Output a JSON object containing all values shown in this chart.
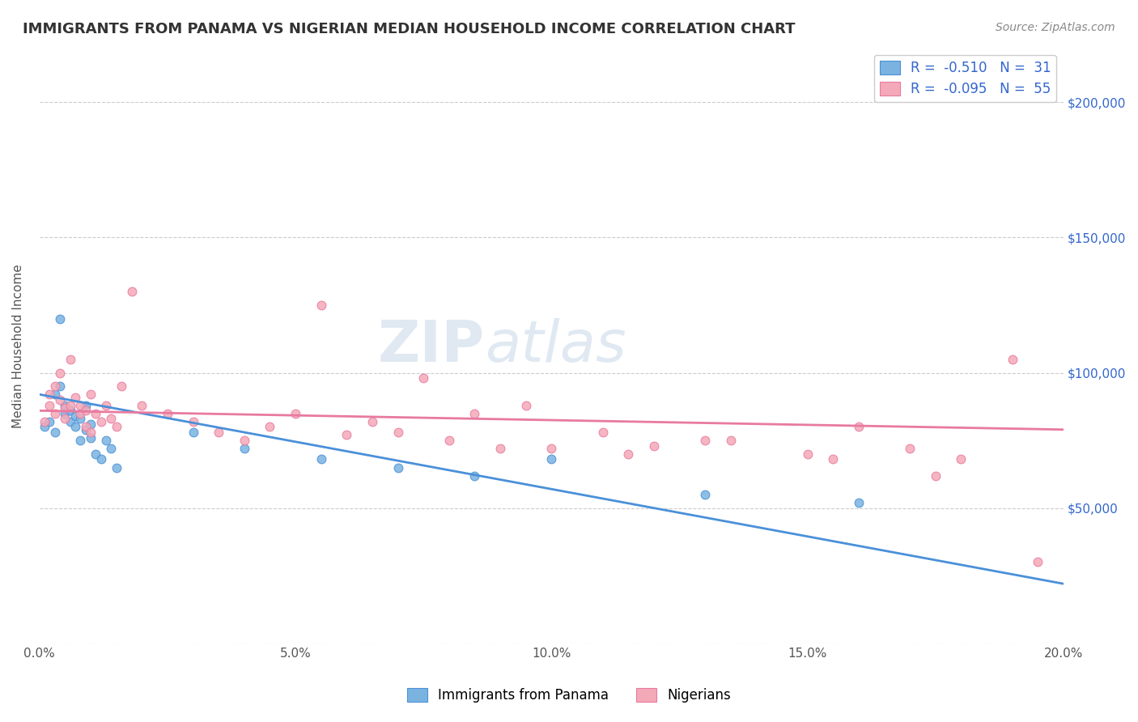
{
  "title": "IMMIGRANTS FROM PANAMA VS NIGERIAN MEDIAN HOUSEHOLD INCOME CORRELATION CHART",
  "source_text": "Source: ZipAtlas.com",
  "xlabel": "",
  "ylabel": "Median Household Income",
  "xlim": [
    0.0,
    0.2
  ],
  "ylim": [
    0,
    220000
  ],
  "xticks": [
    0.0,
    0.05,
    0.1,
    0.15,
    0.2
  ],
  "xticklabels": [
    "0.0%",
    "5.0%",
    "10.0%",
    "15.0%",
    "20.0%"
  ],
  "ytick_values": [
    0,
    50000,
    100000,
    150000,
    200000
  ],
  "right_ytick_labels": [
    "$200,000",
    "$150,000",
    "$100,000",
    "$50,000"
  ],
  "right_ytick_values": [
    200000,
    150000,
    100000,
    50000
  ],
  "blue_color": "#7ab3e0",
  "pink_color": "#f4a9b8",
  "blue_line_color": "#4a90d9",
  "pink_line_color": "#e87a9f",
  "legend_blue_label": "R =  -0.510   N =  31",
  "legend_pink_label": "R =  -0.095   N =  55",
  "series_blue_label": "Immigrants from Panama",
  "series_pink_label": "Nigerians",
  "background_color": "#ffffff",
  "grid_color": "#cccccc",
  "title_color": "#333333",
  "axis_label_color": "#555555",
  "legend_text_color": "#3366cc",
  "blue_scatter_x": [
    0.001,
    0.002,
    0.003,
    0.003,
    0.004,
    0.004,
    0.005,
    0.005,
    0.006,
    0.006,
    0.007,
    0.007,
    0.008,
    0.008,
    0.009,
    0.009,
    0.01,
    0.01,
    0.011,
    0.012,
    0.013,
    0.014,
    0.015,
    0.03,
    0.04,
    0.055,
    0.07,
    0.085,
    0.1,
    0.13,
    0.16
  ],
  "blue_scatter_y": [
    80000,
    82000,
    78000,
    92000,
    120000,
    95000,
    85000,
    88000,
    82000,
    86000,
    80000,
    84000,
    75000,
    83000,
    88000,
    79000,
    76000,
    81000,
    70000,
    68000,
    75000,
    72000,
    65000,
    78000,
    72000,
    68000,
    65000,
    62000,
    68000,
    55000,
    52000
  ],
  "pink_scatter_x": [
    0.001,
    0.002,
    0.002,
    0.003,
    0.003,
    0.004,
    0.004,
    0.005,
    0.005,
    0.006,
    0.006,
    0.007,
    0.008,
    0.008,
    0.009,
    0.009,
    0.01,
    0.01,
    0.011,
    0.012,
    0.013,
    0.014,
    0.015,
    0.016,
    0.018,
    0.02,
    0.025,
    0.03,
    0.035,
    0.04,
    0.045,
    0.05,
    0.06,
    0.065,
    0.07,
    0.08,
    0.085,
    0.09,
    0.1,
    0.11,
    0.12,
    0.13,
    0.15,
    0.16,
    0.17,
    0.18,
    0.19,
    0.195,
    0.055,
    0.075,
    0.095,
    0.115,
    0.135,
    0.155,
    0.175
  ],
  "pink_scatter_y": [
    82000,
    88000,
    92000,
    85000,
    95000,
    90000,
    100000,
    87000,
    83000,
    88000,
    105000,
    91000,
    88000,
    85000,
    86000,
    80000,
    92000,
    78000,
    85000,
    82000,
    88000,
    83000,
    80000,
    95000,
    130000,
    88000,
    85000,
    82000,
    78000,
    75000,
    80000,
    85000,
    77000,
    82000,
    78000,
    75000,
    85000,
    72000,
    72000,
    78000,
    73000,
    75000,
    70000,
    80000,
    72000,
    68000,
    105000,
    30000,
    125000,
    98000,
    88000,
    70000,
    75000,
    68000,
    62000
  ],
  "blue_trend_x": [
    0.0,
    0.2
  ],
  "blue_trend_y": [
    92000,
    22000
  ],
  "pink_trend_x": [
    0.0,
    0.2
  ],
  "pink_trend_y": [
    86000,
    79000
  ]
}
